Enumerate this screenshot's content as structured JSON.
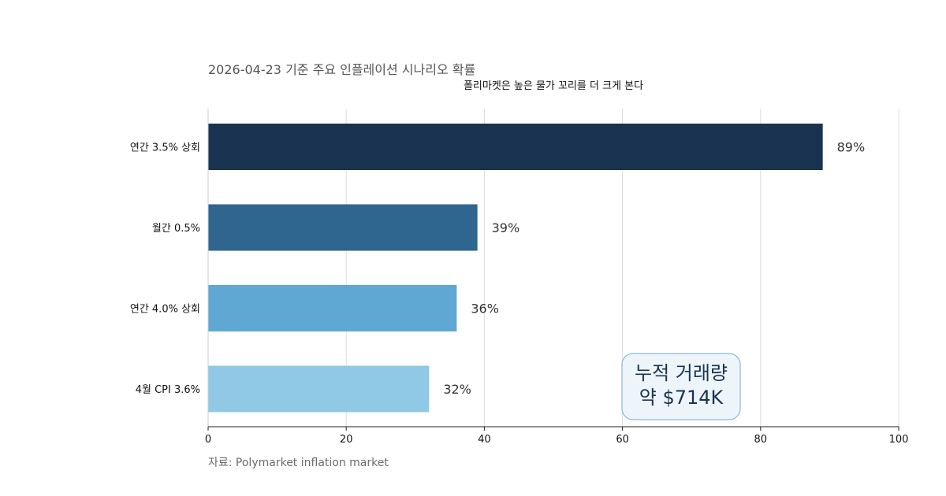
{
  "chart_data": {
    "type": "bar",
    "orientation": "horizontal",
    "title": "2026-04-23 기준 주요 인플레이션 시나리오 확률",
    "subtitle": "폴리마켓은 높은 물가 꼬리를 더 크게 본다",
    "categories": [
      "연간 3.5% 상회",
      "월간 0.5%",
      "연간 4.0% 상회",
      "4월 CPI 3.6%"
    ],
    "values": [
      89,
      39,
      36,
      32
    ],
    "value_labels": [
      "89%",
      "39%",
      "36%",
      "32%"
    ],
    "bar_colors": [
      "#1a3350",
      "#2f6690",
      "#5fa8d3",
      "#8fc9e6"
    ],
    "xlim": [
      0,
      100
    ],
    "xticks": [
      0,
      20,
      40,
      60,
      80,
      100
    ],
    "xlabel": "",
    "ylabel": "",
    "grid": "vertical",
    "annotation": {
      "lines": [
        "누적 거래량",
        "약 $714K"
      ],
      "placement": "bottom-right",
      "background": "#edf5fb",
      "border": "#8ab8d8"
    },
    "source": "자료: Polymarket inflation market"
  }
}
